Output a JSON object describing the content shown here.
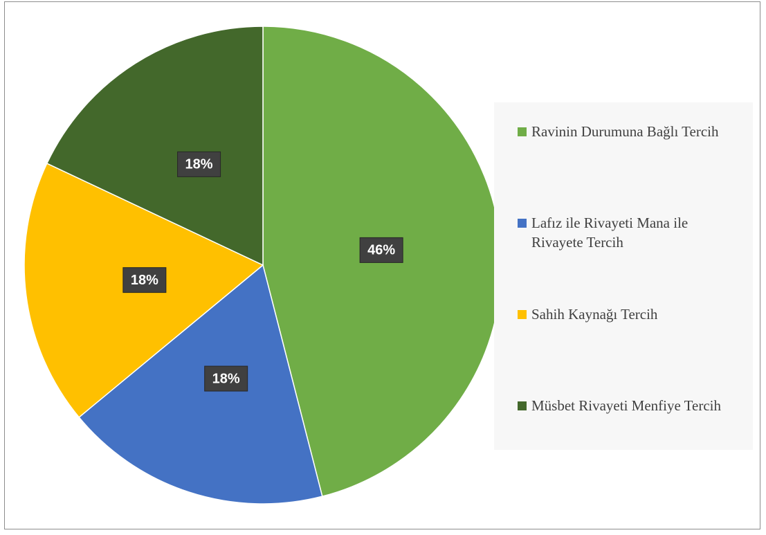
{
  "chart_data": {
    "type": "pie",
    "categories": [
      "Ravinin Durumuna Bağlı Tercih",
      "Lafız ile Rivayeti Mana ile Rivayete Tercih",
      "Sahih Kaynağı Tercih",
      "Müsbet Rivayeti Menfiye Tercih"
    ],
    "values": [
      46,
      18,
      18,
      18
    ],
    "value_labels": [
      "46%",
      "18%",
      "18%",
      "18%"
    ],
    "colors": [
      "#70ad47",
      "#4472c4",
      "#ffc000",
      "#43682b"
    ],
    "legend": "right"
  }
}
